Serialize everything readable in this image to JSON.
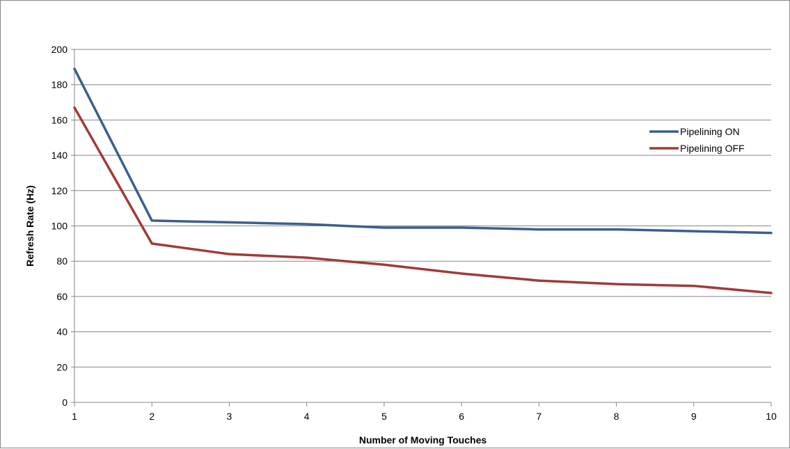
{
  "chart_data": {
    "type": "line",
    "title": "",
    "xlabel": "Number of Moving Touches",
    "ylabel": "Refresh Rate (Hz)",
    "x": [
      1,
      2,
      3,
      4,
      5,
      6,
      7,
      8,
      9,
      10
    ],
    "xlim": [
      1,
      10
    ],
    "ylim": [
      0,
      200
    ],
    "yticks": [
      0,
      20,
      40,
      60,
      80,
      100,
      120,
      140,
      160,
      180,
      200
    ],
    "grid": "horizontal",
    "legend_position": "right",
    "series": [
      {
        "name": "Pipelining ON",
        "color": "#3A5F8F",
        "values": [
          189,
          103,
          102,
          101,
          99,
          99,
          98,
          98,
          97,
          96
        ]
      },
      {
        "name": "Pipelining OFF",
        "color": "#A03B37",
        "values": [
          167,
          90,
          84,
          82,
          78,
          73,
          69,
          67,
          66,
          62
        ]
      }
    ]
  }
}
